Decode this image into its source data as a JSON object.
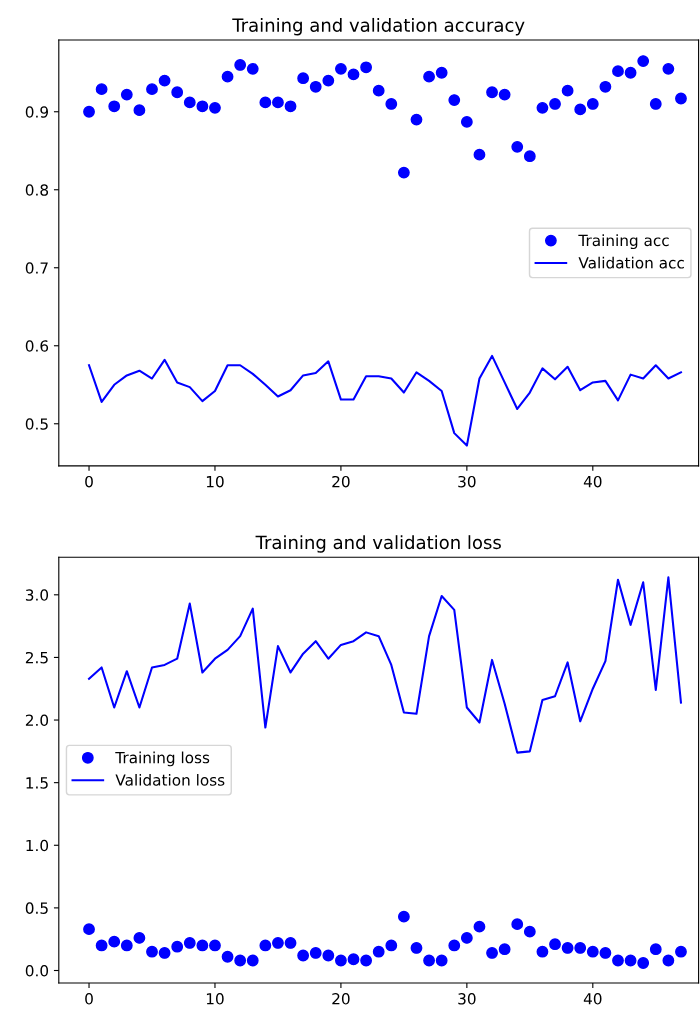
{
  "chart_data": [
    {
      "type": "scatter",
      "title": "Training and validation accuracy",
      "x": [
        0,
        1,
        2,
        3,
        4,
        5,
        6,
        7,
        8,
        9,
        10,
        11,
        12,
        13,
        14,
        15,
        16,
        17,
        18,
        19,
        20,
        21,
        22,
        23,
        24,
        25,
        26,
        27,
        28,
        29,
        30,
        31,
        32,
        33,
        34,
        35,
        36,
        37,
        38,
        39,
        40,
        41,
        42,
        43,
        44,
        45,
        46,
        47
      ],
      "series": [
        {
          "name": "Training acc",
          "marker": "circle",
          "color": "#0000ff",
          "values": [
            0.9,
            0.929,
            0.907,
            0.922,
            0.902,
            0.929,
            0.94,
            0.925,
            0.912,
            0.907,
            0.905,
            0.945,
            0.96,
            0.955,
            0.912,
            0.912,
            0.907,
            0.943,
            0.932,
            0.94,
            0.955,
            0.948,
            0.957,
            0.927,
            0.91,
            0.822,
            0.89,
            0.945,
            0.95,
            0.915,
            0.887,
            0.845,
            0.925,
            0.922,
            0.855,
            0.843,
            0.905,
            0.91,
            0.927,
            0.903,
            0.91,
            0.932,
            0.952,
            0.95,
            0.965,
            0.91,
            0.955,
            0.917
          ]
        },
        {
          "name": "Validation acc",
          "type": "line",
          "color": "#0000ff",
          "line_style": "solid",
          "values": [
            0.575,
            0.528,
            0.55,
            0.562,
            0.568,
            0.558,
            0.582,
            0.553,
            0.547,
            0.529,
            0.542,
            0.575,
            0.575,
            0.564,
            0.55,
            0.535,
            0.543,
            0.562,
            0.565,
            0.58,
            0.531,
            0.531,
            0.561,
            0.561,
            0.558,
            0.54,
            0.566,
            0.555,
            0.542,
            0.488,
            0.472,
            0.558,
            0.587,
            0.553,
            0.519,
            0.54,
            0.571,
            0.557,
            0.573,
            0.543,
            0.553,
            0.555,
            0.53,
            0.563,
            0.558,
            0.575,
            0.558,
            0.566
          ]
        }
      ],
      "xlim": [
        -2.4,
        48.4
      ],
      "xticks": [
        0,
        10,
        20,
        30,
        40
      ],
      "ylim": [
        0.446,
        0.992
      ],
      "yticks": [
        0.5,
        0.6,
        0.7,
        0.8,
        0.9
      ],
      "legend": "center right",
      "grid": false
    },
    {
      "type": "scatter",
      "title": "Training and validation loss",
      "x": [
        0,
        1,
        2,
        3,
        4,
        5,
        6,
        7,
        8,
        9,
        10,
        11,
        12,
        13,
        14,
        15,
        16,
        17,
        18,
        19,
        20,
        21,
        22,
        23,
        24,
        25,
        26,
        27,
        28,
        29,
        30,
        31,
        32,
        33,
        34,
        35,
        36,
        37,
        38,
        39,
        40,
        41,
        42,
        43,
        44,
        45,
        46,
        47
      ],
      "series": [
        {
          "name": "Training loss",
          "marker": "circle",
          "color": "#0000ff",
          "values": [
            0.33,
            0.2,
            0.23,
            0.2,
            0.26,
            0.15,
            0.14,
            0.19,
            0.22,
            0.2,
            0.2,
            0.11,
            0.08,
            0.08,
            0.2,
            0.22,
            0.22,
            0.12,
            0.14,
            0.12,
            0.08,
            0.09,
            0.08,
            0.15,
            0.2,
            0.43,
            0.18,
            0.08,
            0.08,
            0.2,
            0.26,
            0.35,
            0.14,
            0.17,
            0.37,
            0.31,
            0.15,
            0.21,
            0.18,
            0.18,
            0.15,
            0.14,
            0.08,
            0.08,
            0.06,
            0.17,
            0.08,
            0.15
          ]
        },
        {
          "name": "Validation loss",
          "type": "line",
          "color": "#0000ff",
          "line_style": "solid",
          "values": [
            2.33,
            2.42,
            2.1,
            2.39,
            2.1,
            2.42,
            2.44,
            2.49,
            2.93,
            2.38,
            2.49,
            2.56,
            2.67,
            2.89,
            1.94,
            2.59,
            2.38,
            2.53,
            2.63,
            2.49,
            2.6,
            2.63,
            2.7,
            2.67,
            2.44,
            2.06,
            2.05,
            2.67,
            2.99,
            2.88,
            2.1,
            1.98,
            2.48,
            2.13,
            1.74,
            1.75,
            2.16,
            2.19,
            2.46,
            1.99,
            2.25,
            2.47,
            3.12,
            2.76,
            3.1,
            2.24,
            3.14,
            2.14
          ]
        }
      ],
      "xlim": [
        -2.4,
        48.4
      ],
      "xticks": [
        0,
        10,
        20,
        30,
        40
      ],
      "ylim": [
        -0.1,
        3.3
      ],
      "yticks": [
        {
          "value": 0,
          "label": "0.0"
        },
        0.5,
        {
          "value": 1,
          "label": "1.0"
        },
        1.5,
        {
          "value": 2,
          "label": "2.0"
        },
        2.5,
        {
          "value": 3,
          "label": "3.0"
        }
      ],
      "legend": "center left",
      "grid": false
    }
  ]
}
